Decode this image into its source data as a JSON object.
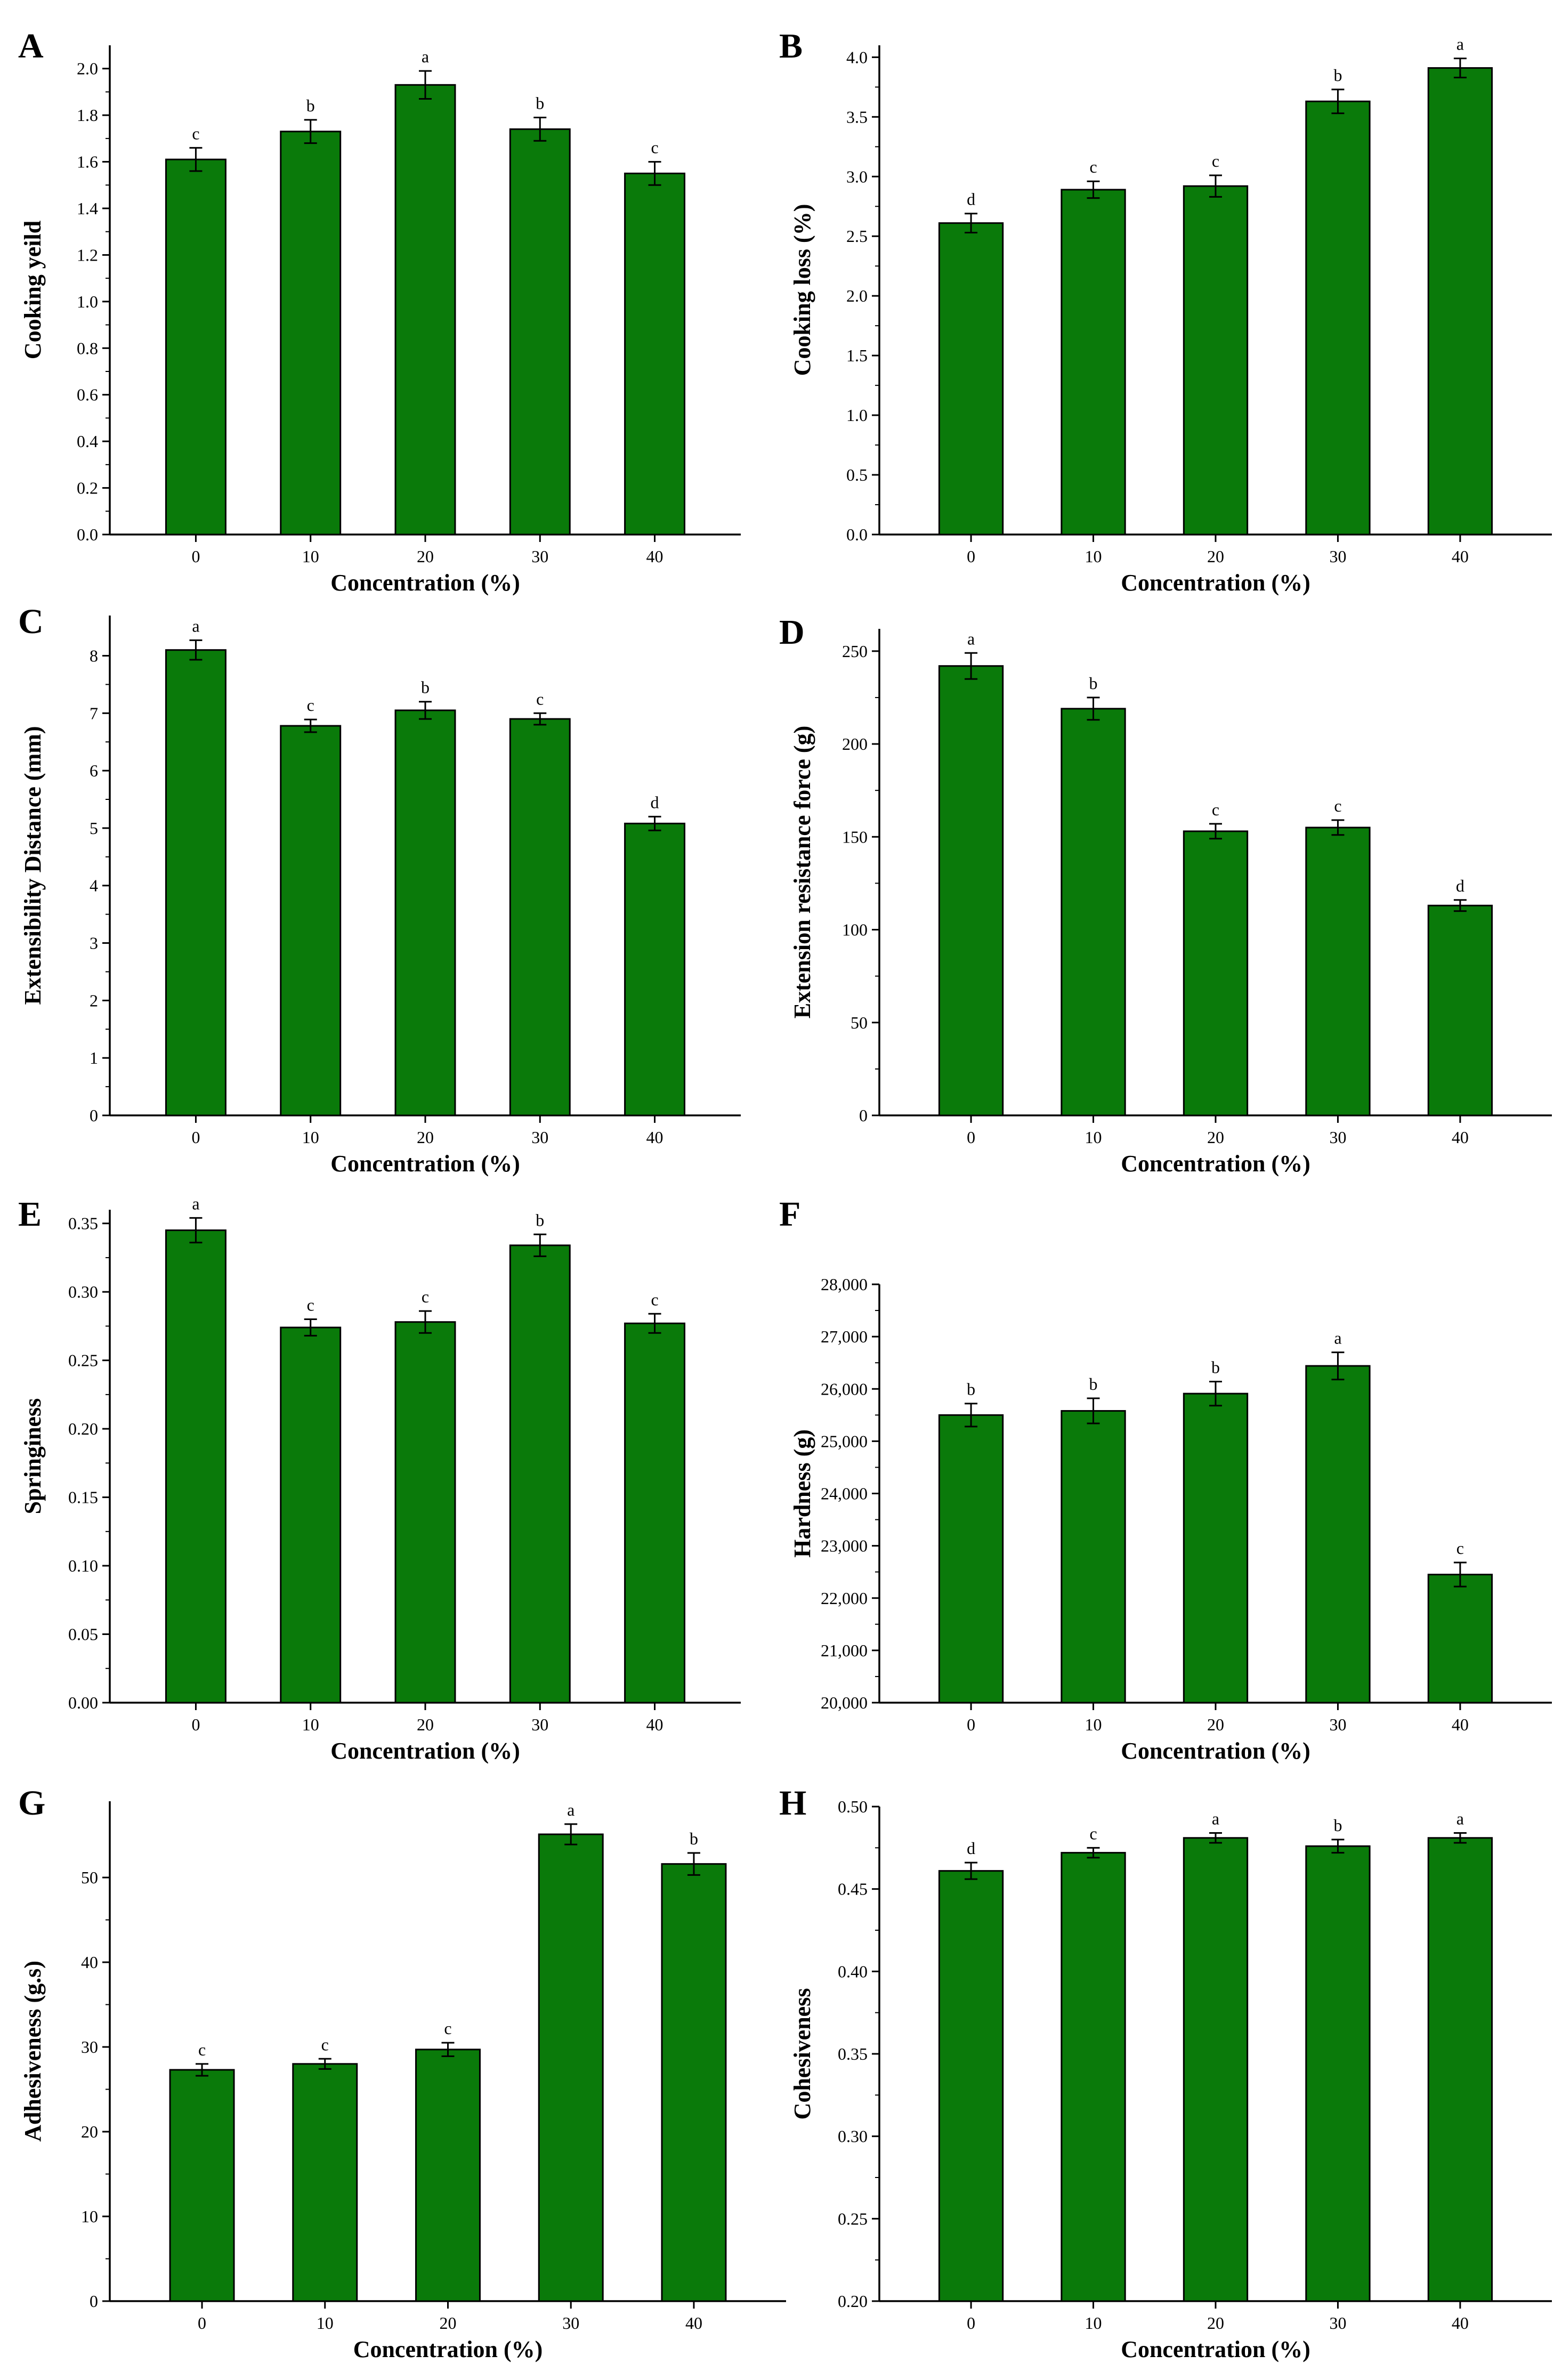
{
  "colors": {
    "bar": "#0a7a0a",
    "axis": "#000000"
  },
  "chart_data": [
    {
      "panel": "A",
      "type": "bar",
      "categories": [
        "0",
        "10",
        "20",
        "30",
        "40"
      ],
      "values": [
        1.61,
        1.73,
        1.93,
        1.74,
        1.55
      ],
      "errors": [
        0.05,
        0.05,
        0.06,
        0.05,
        0.05
      ],
      "labels": [
        "c",
        "b",
        "a",
        "b",
        "c"
      ],
      "xlabel": "Concentration (%)",
      "ylabel": "Cooking yeild",
      "ylim": [
        0,
        2.1
      ],
      "yticks": [
        "0.0",
        "0.2",
        "0.4",
        "0.6",
        "0.8",
        "1.0",
        "1.2",
        "1.4",
        "1.6",
        "1.8",
        "2.0"
      ]
    },
    {
      "panel": "B",
      "type": "bar",
      "categories": [
        "0",
        "10",
        "20",
        "30",
        "40"
      ],
      "values": [
        2.61,
        2.89,
        2.92,
        3.63,
        3.91
      ],
      "errors": [
        0.08,
        0.07,
        0.09,
        0.1,
        0.08
      ],
      "labels": [
        "d",
        "c",
        "c",
        "b",
        "a"
      ],
      "xlabel": "Concentration (%)",
      "ylabel": "Cooking loss (%)",
      "ylim": [
        0,
        4.1
      ],
      "yticks": [
        "0.0",
        "0.5",
        "1.0",
        "1.5",
        "2.0",
        "2.5",
        "3.0",
        "3.5",
        "4.0"
      ]
    },
    {
      "panel": "C",
      "type": "bar",
      "categories": [
        "0",
        "10",
        "20",
        "30",
        "40"
      ],
      "values": [
        8.1,
        6.78,
        7.05,
        6.9,
        5.08
      ],
      "errors": [
        0.17,
        0.11,
        0.15,
        0.1,
        0.12
      ],
      "labels": [
        "a",
        "c",
        "b",
        "c",
        "d"
      ],
      "xlabel": "Concentration (%)",
      "ylabel": "Extensibility Distance (mm)",
      "ylim": [
        0,
        8.7
      ],
      "yticks": [
        "0",
        "1",
        "2",
        "3",
        "4",
        "5",
        "6",
        "7",
        "8"
      ]
    },
    {
      "panel": "D",
      "type": "bar",
      "categories": [
        "0",
        "10",
        "20",
        "30",
        "40"
      ],
      "values": [
        242,
        219,
        153,
        155,
        113
      ],
      "errors": [
        7,
        6,
        4,
        4,
        3
      ],
      "labels": [
        "a",
        "b",
        "c",
        "c",
        "d"
      ],
      "xlabel": "Concentration (%)",
      "ylabel": "Extension resistance force (g)",
      "ylim": [
        0,
        262
      ],
      "yticks": [
        "0",
        "50",
        "100",
        "150",
        "200",
        "250"
      ]
    },
    {
      "panel": "E",
      "type": "bar",
      "categories": [
        "0",
        "10",
        "20",
        "30",
        "40"
      ],
      "values": [
        0.345,
        0.274,
        0.278,
        0.334,
        0.277
      ],
      "errors": [
        0.009,
        0.006,
        0.008,
        0.008,
        0.007
      ],
      "labels": [
        "a",
        "c",
        "c",
        "b",
        "c"
      ],
      "xlabel": "Concentration (%)",
      "ylabel": "Springiness",
      "ylim": [
        0,
        0.36
      ],
      "yticks": [
        "0.00",
        "0.05",
        "0.10",
        "0.15",
        "0.20",
        "0.25",
        "0.30",
        "0.35"
      ]
    },
    {
      "panel": "F",
      "type": "bar",
      "categories": [
        "0",
        "10",
        "20",
        "30",
        "40"
      ],
      "values": [
        25500,
        25580,
        25910,
        26440,
        22450
      ],
      "errors": [
        220,
        240,
        230,
        260,
        230
      ],
      "labels": [
        "b",
        "b",
        "b",
        "a",
        "c"
      ],
      "xlabel": "Concentration (%)",
      "ylabel": "Hardness (g)",
      "ylim": [
        20000,
        28000
      ],
      "yticks": [
        "20,000",
        "21,000",
        "22,000",
        "23,000",
        "24,000",
        "25,000",
        "26,000",
        "27,000",
        "28,000"
      ]
    },
    {
      "panel": "G",
      "type": "bar",
      "categories": [
        "0",
        "10",
        "20",
        "30",
        "40"
      ],
      "values": [
        27.3,
        28.0,
        29.7,
        55.1,
        51.6
      ],
      "errors": [
        0.7,
        0.6,
        0.8,
        1.2,
        1.3
      ],
      "labels": [
        "c",
        "c",
        "c",
        "a",
        "b"
      ],
      "xlabel": "Concentration (%)",
      "ylabel": "Adhesiveness (g.s)",
      "ylim": [
        0,
        59
      ],
      "yticks": [
        "0",
        "10",
        "20",
        "30",
        "40",
        "50"
      ]
    },
    {
      "panel": "H",
      "type": "bar",
      "categories": [
        "0",
        "10",
        "20",
        "30",
        "40"
      ],
      "values": [
        0.461,
        0.472,
        0.481,
        0.476,
        0.481
      ],
      "errors": [
        0.005,
        0.003,
        0.003,
        0.004,
        0.003
      ],
      "labels": [
        "d",
        "c",
        "a",
        "b",
        "a"
      ],
      "xlabel": "Concentration (%)",
      "ylabel": "Cohesiveness",
      "ylim": [
        0.2,
        0.5
      ],
      "yticks": [
        "0.20",
        "0.25",
        "0.30",
        "0.35",
        "0.40",
        "0.45",
        "0.50"
      ]
    }
  ]
}
